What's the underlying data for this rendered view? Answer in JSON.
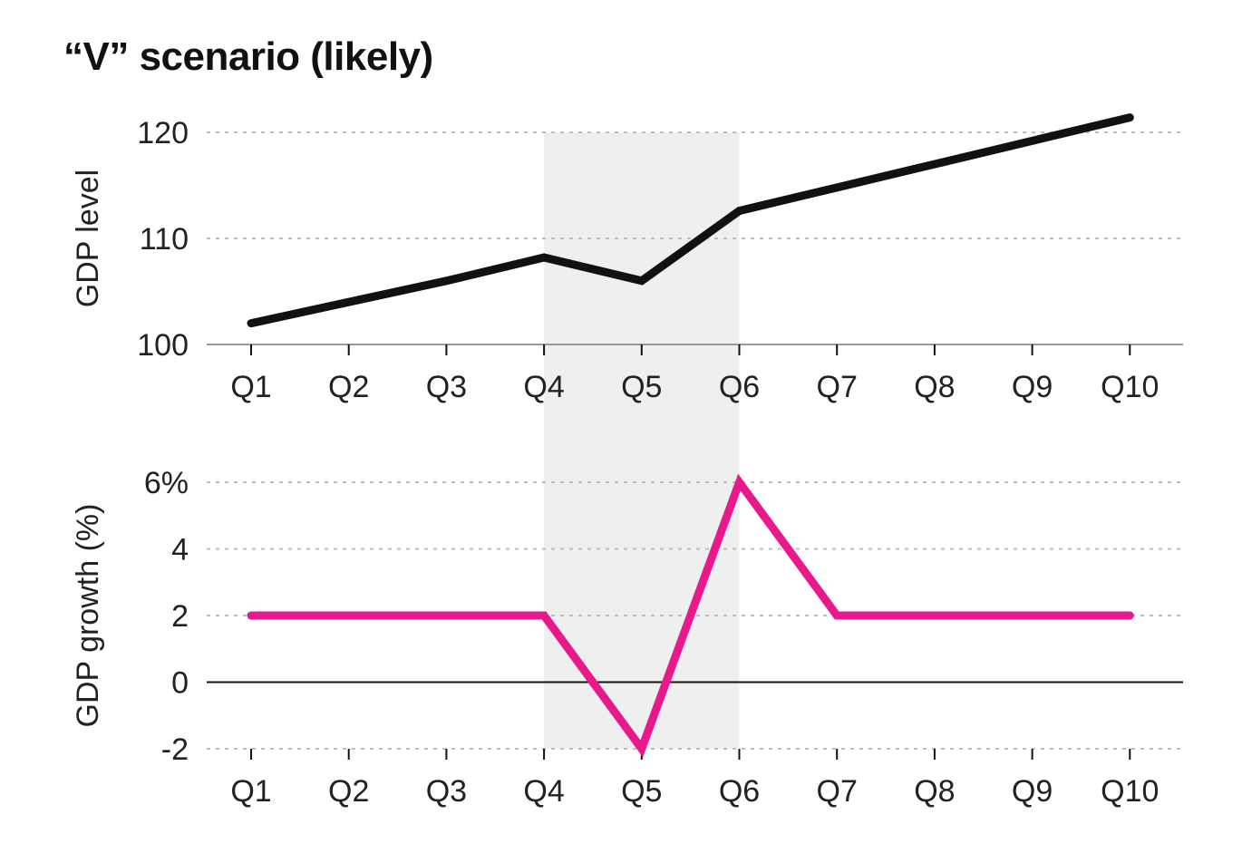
{
  "title": "“V” scenario (likely)",
  "shade": {
    "from": "Q4",
    "to": "Q6",
    "color": "#eef0ef"
  },
  "colors": {
    "level_line": "#111111",
    "growth_line": "#e8198b",
    "grid": "#bdbdbd",
    "zero": "#111111"
  },
  "chart_data": [
    {
      "type": "line",
      "categories": [
        "Q1",
        "Q2",
        "Q3",
        "Q4",
        "Q5",
        "Q6",
        "Q7",
        "Q8",
        "Q9",
        "Q10"
      ],
      "series": [
        {
          "values": [
            102,
            104,
            106,
            108.2,
            106,
            112.6,
            114.8,
            117,
            119.2,
            121.4
          ]
        }
      ],
      "ylabel": "GDP level",
      "ylim": [
        100,
        120
      ],
      "yticks": [
        100,
        110,
        120
      ],
      "ytick_labels": [
        "100",
        "110",
        "120"
      ],
      "grid": true
    },
    {
      "type": "line",
      "categories": [
        "Q1",
        "Q2",
        "Q3",
        "Q4",
        "Q5",
        "Q6",
        "Q7",
        "Q8",
        "Q9",
        "Q10"
      ],
      "series": [
        {
          "values": [
            2,
            2,
            2,
            2,
            -2,
            6,
            2,
            2,
            2,
            2
          ]
        }
      ],
      "ylabel": "GDP growth (%)",
      "ylim": [
        -2,
        6
      ],
      "yticks": [
        -2,
        0,
        2,
        4,
        6
      ],
      "ytick_labels": [
        "-2",
        "0",
        "2",
        "4",
        "6%"
      ],
      "grid": true
    }
  ]
}
